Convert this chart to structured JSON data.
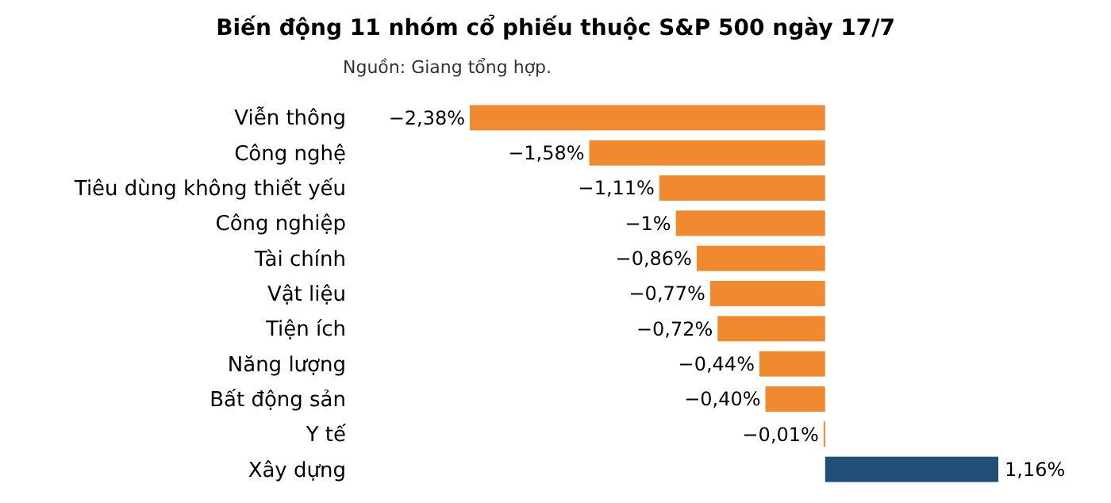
{
  "chart_data": {
    "type": "bar",
    "orientation": "horizontal",
    "title": "Biến động 11 nhóm cổ phiếu thuộc S&P 500 ngày 17/7",
    "subtitle": "Nguồn: Giang tổng hợp.",
    "categories": [
      "Viễn thông",
      "Công nghệ",
      "Tiêu dùng không thiết yếu",
      "Công nghiệp",
      "Tài chính",
      "Vật liệu",
      "Tiện ích",
      "Năng lượng",
      "Bất động sản",
      "Y tế",
      "Xây dựng"
    ],
    "values": [
      -2.38,
      -1.58,
      -1.11,
      -1,
      -0.86,
      -0.77,
      -0.72,
      -0.44,
      -0.4,
      -0.01,
      1.16
    ],
    "colors": [
      "#f0892f",
      "#f0892f",
      "#f0892f",
      "#f0892f",
      "#f0892f",
      "#f0892f",
      "#f0892f",
      "#f0892f",
      "#f0892f",
      "#f0892f",
      "#1f4e79"
    ],
    "value_labels": [
      "−2,38%",
      "−1,58%",
      "−1,11%",
      "−1%",
      "−0,86%",
      "−0,77%",
      "−0,72%",
      "−0,44%",
      "−0,40%",
      "−0,01%",
      "1,16%"
    ]
  }
}
